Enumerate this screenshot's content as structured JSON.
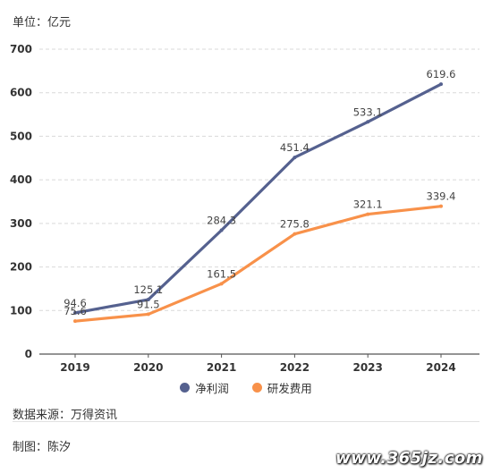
{
  "unit_label": "单位：亿元",
  "source_label": "数据来源：万得资讯",
  "author_label": "制图：陈汐",
  "watermark": "www.365jz.com",
  "colors": {
    "net_profit": "#55618f",
    "rd_expense": "#f8914a",
    "grid": "#d9d9d9",
    "axis": "#555555"
  },
  "chart_data": {
    "type": "line",
    "title": "",
    "xlabel": "",
    "ylabel": "单位：亿元",
    "categories": [
      "2019",
      "2020",
      "2021",
      "2022",
      "2023",
      "2024"
    ],
    "ylim": [
      0,
      700
    ],
    "yticks": [
      0,
      100,
      200,
      300,
      400,
      500,
      600,
      700
    ],
    "grid": true,
    "legend_position": "bottom",
    "series": [
      {
        "name": "净利润",
        "color": "#55618f",
        "values": [
          94.6,
          125.1,
          284.3,
          451.4,
          533.1,
          619.6
        ],
        "labels": [
          "94.6",
          "125.1",
          "284.3",
          "451.4",
          "533.1",
          "619.6"
        ]
      },
      {
        "name": "研发费用",
        "color": "#f8914a",
        "values": [
          75.6,
          91.5,
          161.5,
          275.8,
          321.1,
          339.4
        ],
        "labels": [
          "75.6",
          "91.5",
          "161.5",
          "275.8",
          "321.1",
          "339.4"
        ]
      }
    ]
  }
}
